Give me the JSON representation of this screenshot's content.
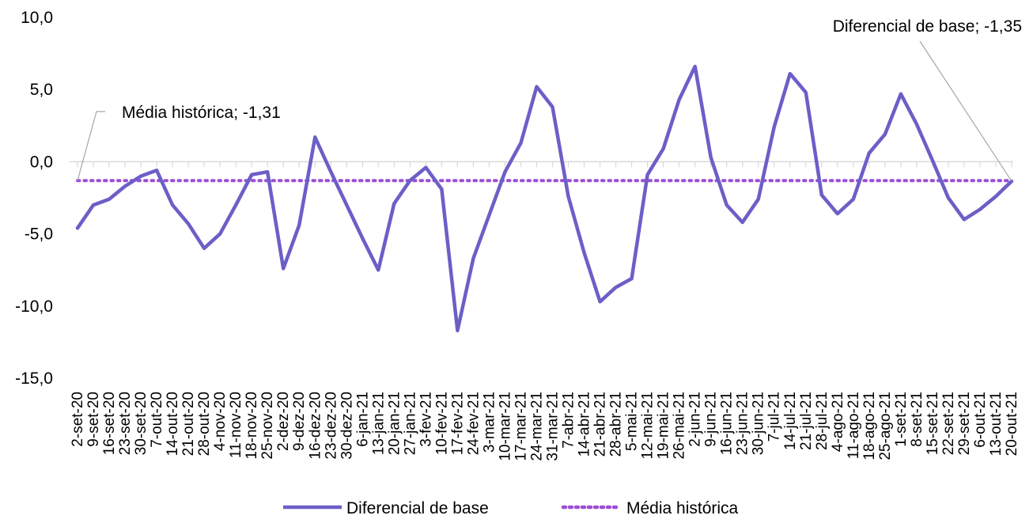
{
  "chart_data": {
    "type": "line",
    "title": "",
    "xlabel": "",
    "ylabel": "",
    "ylim": [
      -15,
      10
    ],
    "yticks": [
      "10,0",
      "5,0",
      "0,0",
      "-5,0",
      "-10,0",
      "-15,0"
    ],
    "ytick_values": [
      10,
      5,
      0,
      -5,
      -10,
      -15
    ],
    "categories": [
      "2-set-20",
      "9-set-20",
      "16-set-20",
      "23-set-20",
      "30-set-20",
      "7-out-20",
      "14-out-20",
      "21-out-20",
      "28-out-20",
      "4-nov-20",
      "11-nov-20",
      "18-nov-20",
      "25-nov-20",
      "2-dez-20",
      "9-dez-20",
      "16-dez-20",
      "23-dez-20",
      "30-dez-20",
      "6-jan-21",
      "13-jan-21",
      "20-jan-21",
      "27-jan-21",
      "3-fev-21",
      "10-fev-21",
      "17-fev-21",
      "24-fev-21",
      "3-mar-21",
      "10-mar-21",
      "17-mar-21",
      "24-mar-21",
      "31-mar-21",
      "7-abr-21",
      "14-abr-21",
      "21-abr-21",
      "28-abr-21",
      "5-mai-21",
      "12-mai-21",
      "19-mai-21",
      "26-mai-21",
      "2-jun-21",
      "9-jun-21",
      "16-jun-21",
      "23-jun-21",
      "30-jun-21",
      "7-jul-21",
      "14-jul-21",
      "21-jul-21",
      "28-jul-21",
      "4-ago-21",
      "11-ago-21",
      "18-ago-21",
      "25-ago-21",
      "1-set-21",
      "8-set-21",
      "15-set-21",
      "22-set-21",
      "29-set-21",
      "6-out-21",
      "13-out-21",
      "20-out-21"
    ],
    "series": [
      {
        "name": "Diferencial de base",
        "color": "#6B5FC7",
        "style": "solid",
        "values": [
          -4.6,
          -3.0,
          -2.6,
          -1.7,
          -1.0,
          -0.6,
          -3.0,
          -4.3,
          -6.0,
          -5.0,
          -3.0,
          -0.9,
          -0.7,
          -7.4,
          -4.4,
          1.7,
          -0.7,
          -3.0,
          -5.3,
          -7.5,
          -2.9,
          -1.3,
          -0.4,
          -1.9,
          -11.7,
          -6.7,
          -3.7,
          -0.7,
          1.3,
          5.2,
          3.8,
          -2.4,
          -6.3,
          -9.7,
          -8.7,
          -8.1,
          -0.9,
          0.9,
          4.3,
          6.6,
          0.3,
          -3.0,
          -4.2,
          -2.6,
          2.4,
          6.1,
          4.8,
          -2.3,
          -3.6,
          -2.6,
          0.6,
          1.9,
          4.7,
          2.6,
          0.1,
          -2.5,
          -4.0,
          -3.3,
          -2.4,
          -1.35
        ]
      },
      {
        "name": "Média histórica",
        "color": "#9B4FD6",
        "style": "dotted",
        "constant": -1.31
      }
    ],
    "annotations": [
      {
        "text": "Média histórica; -1,31"
      },
      {
        "text": "Diferencial de base; -1,35"
      }
    ],
    "legend": {
      "position": "bottom",
      "items": [
        "Diferencial de base",
        "Média histórica"
      ]
    },
    "grid": false
  }
}
